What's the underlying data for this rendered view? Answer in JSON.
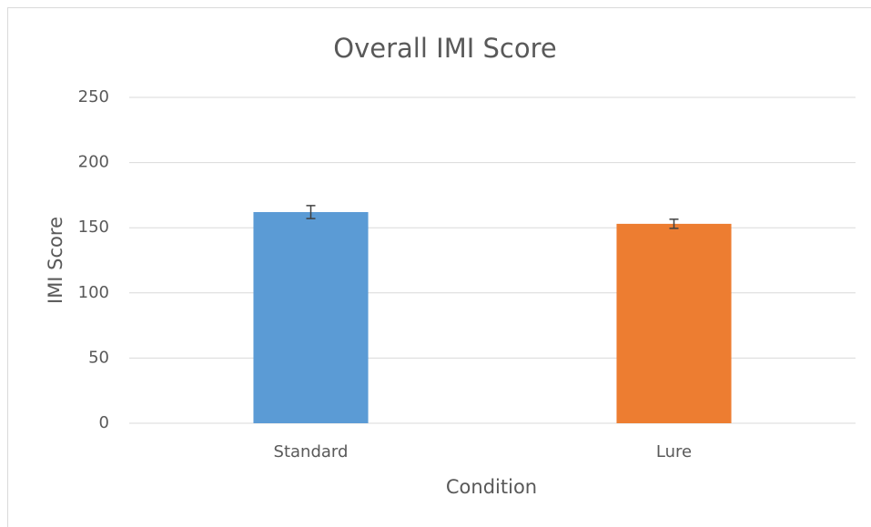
{
  "chart_data": {
    "type": "bar",
    "title": "Overall IMI Score",
    "xlabel": "Condition",
    "ylabel": "IMI Score",
    "categories": [
      "Standard",
      "Lure"
    ],
    "values": [
      162,
      153
    ],
    "errors": [
      5,
      3.5
    ],
    "colors": [
      "#5b9bd5",
      "#ed7d31"
    ],
    "ylim": [
      0,
      250
    ],
    "yticks": [
      0,
      50,
      100,
      150,
      200,
      250
    ],
    "grid": true
  }
}
